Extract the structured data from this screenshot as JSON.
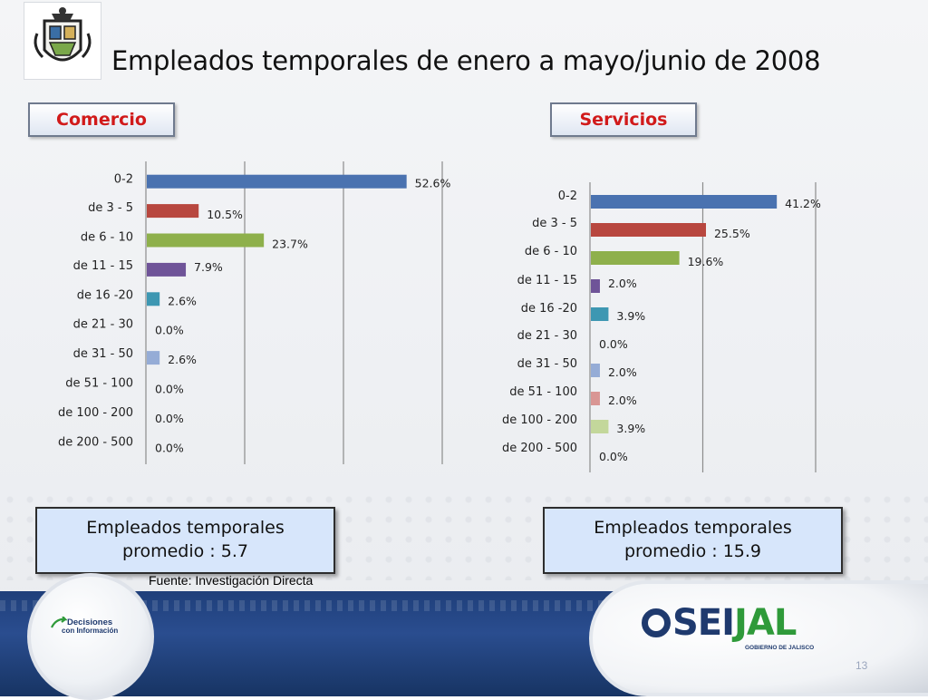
{
  "slide": {
    "title": "Empleados temporales de enero a mayo/junio de 2008",
    "source": "Fuente: Investigación Directa",
    "page_number": "13"
  },
  "tabs": {
    "left": "Comercio",
    "right": "Servicios"
  },
  "averages": {
    "left": {
      "line1": "Empleados temporales",
      "line2": "promedio :  5.7"
    },
    "right": {
      "line1": "Empleados temporales",
      "line2": "promedio : 15.9"
    }
  },
  "logos": {
    "decisiones_line1": "Decisiones",
    "decisiones_line2": "con Información",
    "seijal_blue": "SEI",
    "seijal_green": "JAL",
    "seijal_sub": "GOBIERNO DE JALISCO"
  },
  "colors": {
    "accent_red": "#d11a1a",
    "footer_blue": "#1f3f7a",
    "seijal_green": "#2f9a3a"
  },
  "chart_data": [
    {
      "type": "bar",
      "orientation": "horizontal",
      "categories": [
        "0-2",
        "de 3 - 5",
        "de 6 - 10",
        "de 11 - 15",
        "de 16 -20",
        "de 21 - 30",
        "de 31 - 50",
        "de 51 - 100",
        "de 100 - 200",
        "de 200 - 500"
      ],
      "values": [
        52.6,
        10.5,
        23.7,
        7.9,
        2.6,
        0.0,
        2.6,
        0.0,
        0.0,
        0.0
      ],
      "labels": [
        "52.6%",
        "10.5%",
        "23.7%",
        "7.9%",
        "2.6%",
        "0.0%",
        "2.6%",
        "0.0%",
        "0.0%",
        "0.0%"
      ],
      "bar_colors": [
        "#4a72b0",
        "#b8473f",
        "#8eb04b",
        "#6f5498",
        "#3d97b2",
        "#e8893a",
        "#95acd6",
        "#d99694",
        "#c3d79b",
        "#b3a2c7"
      ],
      "xlim": [
        0,
        60
      ],
      "grid": true
    },
    {
      "type": "bar",
      "orientation": "horizontal",
      "categories": [
        "0-2",
        "de 3 - 5",
        "de 6 - 10",
        "de 11 - 15",
        "de 16 -20",
        "de 21 - 30",
        "de 31 - 50",
        "de 51 - 100",
        "de 100 - 200",
        "de 200 - 500"
      ],
      "values": [
        41.2,
        25.5,
        19.6,
        2.0,
        3.9,
        0.0,
        2.0,
        2.0,
        3.9,
        0.0
      ],
      "labels": [
        "41.2%",
        "25.5%",
        "19.6%",
        "2.0%",
        "3.9%",
        "0.0%",
        "2.0%",
        "2.0%",
        "3.9%",
        "0.0%"
      ],
      "bar_colors": [
        "#4a72b0",
        "#b8473f",
        "#8eb04b",
        "#6f5498",
        "#3d97b2",
        "#e8893a",
        "#95acd6",
        "#d99694",
        "#c3d79b",
        "#b3a2c7"
      ],
      "xlim": [
        0,
        50
      ],
      "grid": true
    }
  ]
}
